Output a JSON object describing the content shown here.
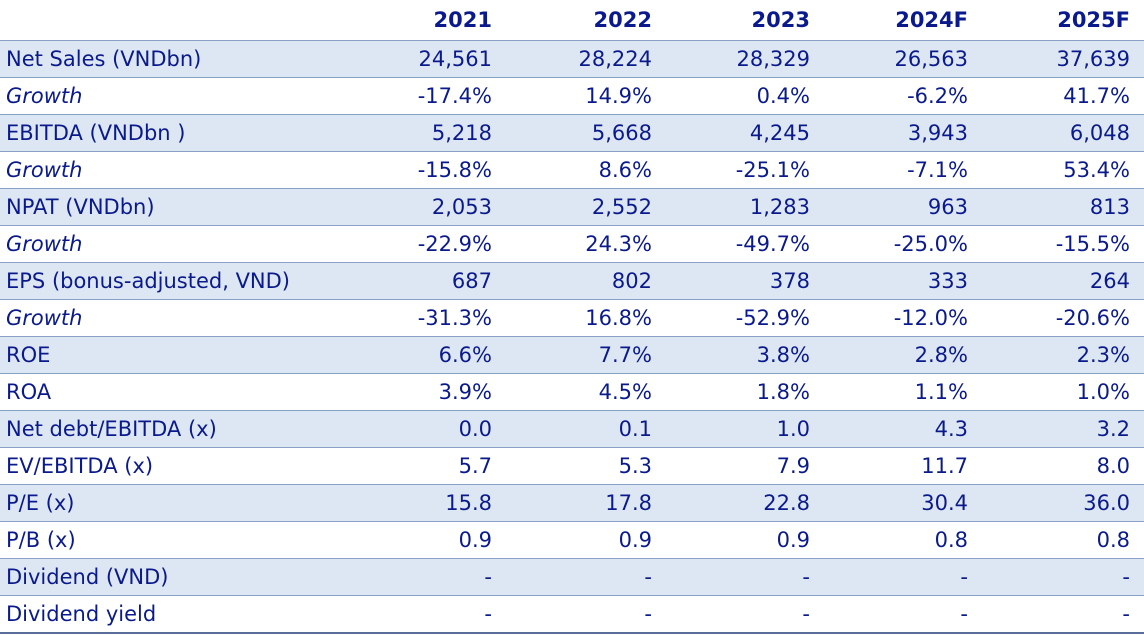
{
  "table": {
    "corner": "",
    "columns": [
      "2021",
      "2022",
      "2023",
      "2024F",
      "2025F"
    ],
    "rows": [
      {
        "label": "Net Sales (VNDbn)",
        "values": [
          "24,561",
          "28,224",
          "28,329",
          "26,563",
          "37,639"
        ]
      },
      {
        "label": "Growth",
        "values": [
          "-17.4%",
          "14.9%",
          "0.4%",
          "-6.2%",
          "41.7%"
        ]
      },
      {
        "label": "EBITDA (VNDbn )",
        "values": [
          "5,218",
          "5,668",
          "4,245",
          "3,943",
          "6,048"
        ]
      },
      {
        "label": "Growth",
        "values": [
          "-15.8%",
          "8.6%",
          "-25.1%",
          "-7.1%",
          "53.4%"
        ]
      },
      {
        "label": "NPAT (VNDbn)",
        "values": [
          "2,053",
          "2,552",
          "1,283",
          "963",
          "813"
        ]
      },
      {
        "label": "Growth",
        "values": [
          "-22.9%",
          "24.3%",
          "-49.7%",
          "-25.0%",
          "-15.5%"
        ]
      },
      {
        "label": "EPS (bonus-adjusted, VND)",
        "values": [
          "687",
          "802",
          "378",
          "333",
          "264"
        ]
      },
      {
        "label": "Growth",
        "values": [
          "-31.3%",
          "16.8%",
          "-52.9%",
          "-12.0%",
          "-20.6%"
        ]
      },
      {
        "label": "ROE",
        "values": [
          "6.6%",
          "7.7%",
          "3.8%",
          "2.8%",
          "2.3%"
        ]
      },
      {
        "label": "ROA",
        "values": [
          "3.9%",
          "4.5%",
          "1.8%",
          "1.1%",
          "1.0%"
        ]
      },
      {
        "label": "Net debt/EBITDA (x)",
        "values": [
          "0.0",
          "0.1",
          "1.0",
          "4.3",
          "3.2"
        ]
      },
      {
        "label": "EV/EBITDA (x)",
        "values": [
          "5.7",
          "5.3",
          "7.9",
          "11.7",
          "8.0"
        ]
      },
      {
        "label": "P/E (x)",
        "values": [
          "15.8",
          "17.8",
          "22.8",
          "30.4",
          "36.0"
        ]
      },
      {
        "label": "P/B (x)",
        "values": [
          "0.9",
          "0.9",
          "0.9",
          "0.8",
          "0.8"
        ]
      },
      {
        "label": "Dividend (VND)",
        "values": [
          "-",
          "-",
          "-",
          "-",
          "-"
        ]
      },
      {
        "label": "Dividend yield",
        "values": [
          "-",
          "-",
          "-",
          "-",
          "-"
        ]
      }
    ]
  }
}
